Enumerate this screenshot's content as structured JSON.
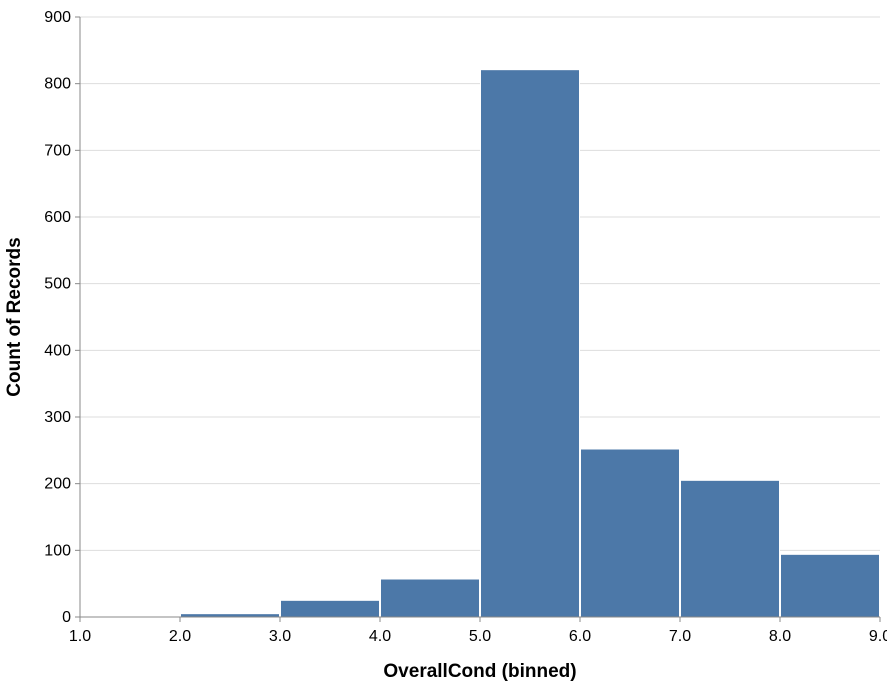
{
  "chart_data": {
    "type": "bar",
    "title": "",
    "xlabel": "OverallCond (binned)",
    "ylabel": "Count of Records",
    "bins": [
      {
        "start": 1,
        "end": 2,
        "count": 1
      },
      {
        "start": 2,
        "end": 3,
        "count": 5
      },
      {
        "start": 3,
        "end": 4,
        "count": 25
      },
      {
        "start": 4,
        "end": 5,
        "count": 57
      },
      {
        "start": 5,
        "end": 6,
        "count": 821
      },
      {
        "start": 6,
        "end": 7,
        "count": 252
      },
      {
        "start": 7,
        "end": 8,
        "count": 205
      },
      {
        "start": 8,
        "end": 9,
        "count": 94
      }
    ],
    "xlim": [
      1,
      9
    ],
    "ylim": [
      0,
      900
    ],
    "x_ticks": [
      "1.0",
      "2.0",
      "3.0",
      "4.0",
      "5.0",
      "6.0",
      "7.0",
      "8.0",
      "9.0"
    ],
    "y_ticks": [
      0,
      100,
      200,
      300,
      400,
      500,
      600,
      700,
      800,
      900
    ],
    "grid": true,
    "bar_color": "#4c78a8"
  }
}
